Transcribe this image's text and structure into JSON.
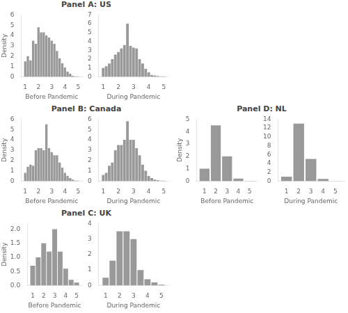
{
  "chart_data": [
    {
      "type": "bar",
      "title": "Panel A: US",
      "x": [
        1.0,
        1.2,
        1.4,
        1.6,
        1.8,
        2.0,
        2.2,
        2.4,
        2.6,
        2.8,
        3.0,
        3.2,
        3.4,
        3.6,
        3.8,
        4.0,
        4.2,
        4.4,
        4.6,
        4.8,
        5.0
      ],
      "values": [
        1.5,
        2.0,
        1.6,
        3.5,
        3.2,
        4.8,
        4.3,
        4.3,
        4.0,
        3.8,
        3.5,
        3.2,
        2.5,
        1.8,
        1.3,
        0.9,
        0.5,
        0.3,
        0.1,
        0.05,
        0.05
      ],
      "color": "#999999",
      "xlabel": "Before Pandemic",
      "ylabel": "Density",
      "xlim": [
        0.7,
        5.3
      ],
      "ylim": [
        0,
        6
      ],
      "xticks": [
        1,
        2,
        3,
        4,
        5
      ],
      "yticks": [
        0,
        1,
        2,
        3,
        4,
        5,
        6
      ],
      "grid": false
    },
    {
      "type": "bar",
      "x": [
        1.0,
        1.2,
        1.4,
        1.6,
        1.8,
        2.0,
        2.2,
        2.4,
        2.6,
        2.8,
        3.0,
        3.2,
        3.4,
        3.6,
        3.8,
        4.0,
        4.2,
        4.4,
        4.6,
        4.8,
        5.0
      ],
      "values": [
        1.0,
        1.2,
        1.5,
        2.0,
        2.5,
        2.8,
        3.2,
        3.6,
        6.0,
        3.5,
        3.3,
        3.2,
        2.0,
        1.5,
        0.9,
        0.5,
        0.2,
        0.15,
        0.1,
        0.05,
        0.05
      ],
      "color": "#999999",
      "xlabel": "During Pandemic",
      "xlim": [
        0.7,
        5.3
      ],
      "ylim": [
        0,
        7
      ],
      "xticks": [
        1,
        2,
        3,
        4,
        5
      ],
      "yticks": [
        0,
        1,
        2,
        3,
        4,
        5,
        6,
        7
      ],
      "grid": false
    },
    {
      "type": "bar",
      "title": "Panel B: Canada",
      "x": [
        1.0,
        1.2,
        1.4,
        1.6,
        1.8,
        2.0,
        2.2,
        2.4,
        2.6,
        2.8,
        3.0,
        3.2,
        3.4,
        3.6,
        3.8,
        4.0,
        4.2,
        4.4,
        4.6,
        4.8,
        5.0
      ],
      "values": [
        0.8,
        1.4,
        1.6,
        1.5,
        3.0,
        3.2,
        3.2,
        3.0,
        5.5,
        3.2,
        2.8,
        2.5,
        2.5,
        1.8,
        1.3,
        0.8,
        0.5,
        0.3,
        0.15,
        0.05,
        0.05
      ],
      "color": "#999999",
      "xlabel": "Before Pandemic",
      "ylabel": "Density",
      "xlim": [
        0.7,
        5.3
      ],
      "ylim": [
        0,
        6
      ],
      "xticks": [
        1,
        2,
        3,
        4,
        5
      ],
      "yticks": [
        0,
        1,
        2,
        3,
        4,
        5,
        6
      ],
      "grid": false
    },
    {
      "type": "bar",
      "x": [
        1.0,
        1.2,
        1.4,
        1.6,
        1.8,
        2.0,
        2.2,
        2.4,
        2.6,
        2.8,
        3.0,
        3.2,
        3.4,
        3.6,
        3.8,
        4.0,
        4.2,
        4.4,
        4.6,
        4.8,
        5.0
      ],
      "values": [
        0.6,
        0.8,
        1.5,
        1.8,
        3.0,
        3.5,
        3.5,
        4.0,
        5.8,
        4.0,
        4.0,
        3.2,
        2.5,
        1.6,
        1.0,
        0.5,
        0.3,
        0.15,
        0.1,
        0.05,
        0.05
      ],
      "color": "#999999",
      "xlabel": "During Pandemic",
      "xlim": [
        0.7,
        5.3
      ],
      "ylim": [
        0,
        6
      ],
      "xticks": [
        1,
        2,
        3,
        4,
        5
      ],
      "yticks": [
        0,
        1,
        2,
        3,
        4,
        5,
        6
      ],
      "grid": false
    },
    {
      "type": "bar",
      "title": "Panel D: NL",
      "x": [
        1.0,
        2.0,
        3.0,
        4.0,
        5.0
      ],
      "values": [
        1.0,
        4.5,
        2.0,
        0.2,
        0.02
      ],
      "color": "#999999",
      "xlabel": "Before Pandemic",
      "ylabel": "Density",
      "xlim": [
        0.3,
        5.7
      ],
      "ylim": [
        0,
        5
      ],
      "xticks": [
        1,
        2,
        3,
        4,
        5
      ],
      "yticks": [
        0,
        1,
        2,
        3,
        4,
        5
      ],
      "grid": false
    },
    {
      "type": "bar",
      "x": [
        1.0,
        2.0,
        3.0,
        4.0,
        5.0
      ],
      "values": [
        1.0,
        13.0,
        5.0,
        0.5,
        0.02
      ],
      "color": "#999999",
      "xlabel": "During Pandemic",
      "xlim": [
        0.3,
        5.7
      ],
      "ylim": [
        0,
        14
      ],
      "xticks": [
        1,
        2,
        3,
        4,
        5
      ],
      "yticks": [
        0,
        2,
        4,
        6,
        8,
        10,
        12,
        14
      ],
      "grid": false
    },
    {
      "type": "bar",
      "title": "Panel C: UK",
      "x": [
        1.0,
        1.5,
        2.0,
        2.5,
        3.0,
        3.5,
        4.0,
        4.5,
        5.0
      ],
      "values": [
        0.7,
        1.0,
        1.5,
        1.2,
        2.0,
        1.2,
        0.6,
        0.2,
        0.1
      ],
      "color": "#999999",
      "xlabel": "Before Pandemic",
      "ylabel": "Density",
      "xlim": [
        0.5,
        5.5
      ],
      "ylim": [
        0,
        2.2
      ],
      "xticks": [
        1,
        2,
        3,
        4,
        5
      ],
      "yticks": [
        {
          "value": 0,
          "label": "0.0"
        },
        {
          "value": 0.5,
          "label": "0.5"
        },
        {
          "value": 1.0,
          "label": "1.0"
        },
        {
          "value": 1.5,
          "label": "1.5"
        },
        {
          "value": 2.0,
          "label": "2.0"
        }
      ],
      "grid": false
    },
    {
      "type": "bar",
      "x": [
        1.0,
        1.5,
        2.0,
        2.5,
        3.0,
        3.5,
        4.0,
        4.5,
        5.0
      ],
      "values": [
        0.5,
        1.6,
        3.5,
        3.5,
        3.0,
        1.0,
        0.4,
        0.2,
        0.05
      ],
      "color": "#999999",
      "xlabel": "During Pandemic",
      "xlim": [
        0.5,
        5.5
      ],
      "ylim": [
        0,
        4.0
      ],
      "xticks": [
        1,
        2,
        3,
        4,
        5
      ],
      "yticks": [
        0,
        1,
        2,
        3,
        4
      ],
      "grid": false
    }
  ]
}
